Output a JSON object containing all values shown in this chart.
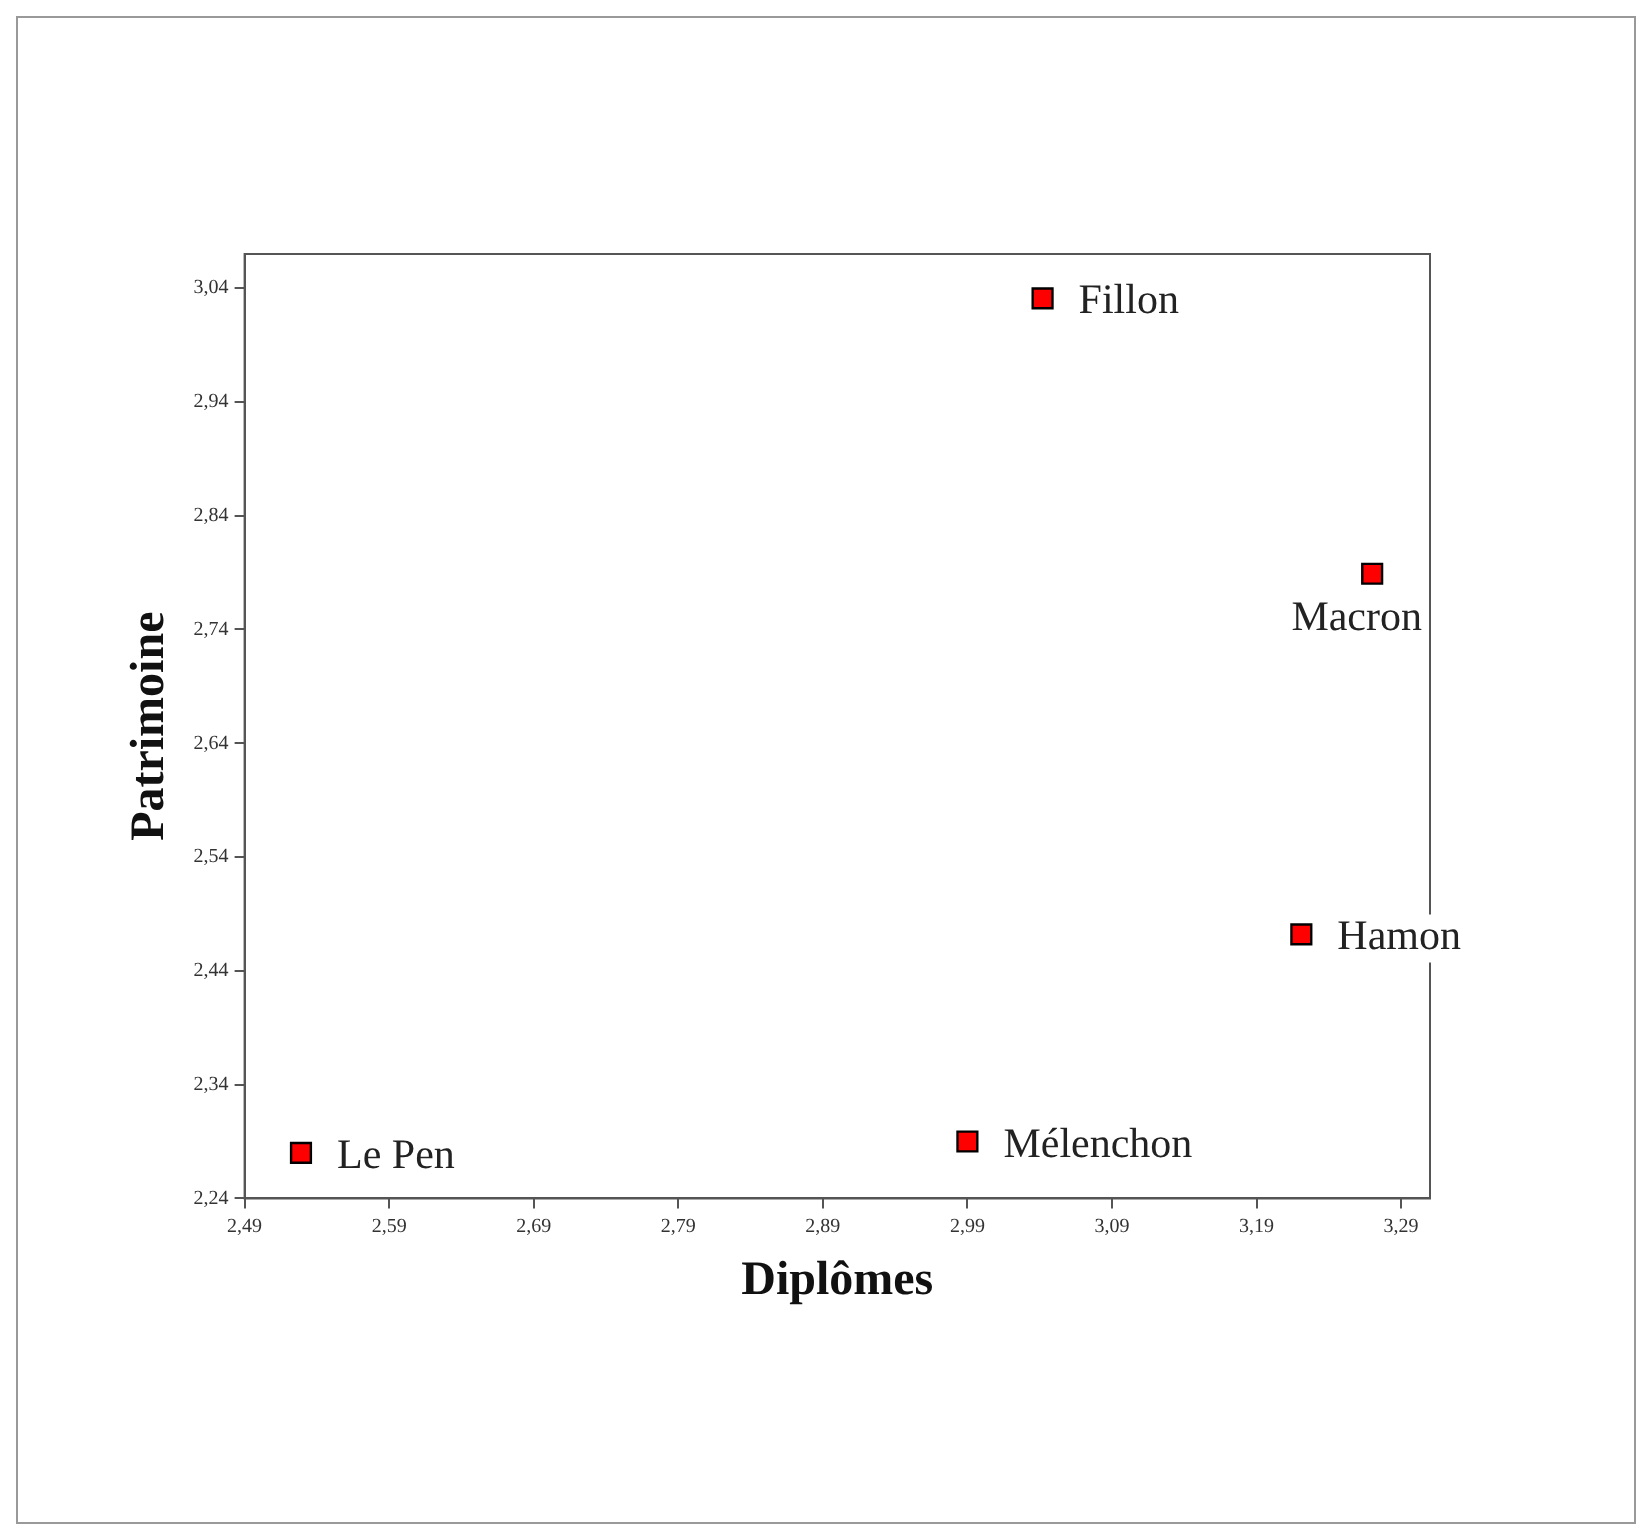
{
  "chart_data": {
    "type": "scatter",
    "xlabel": "Diplômes",
    "ylabel": "Patrimoine",
    "series": [
      {
        "color": "#ff0000",
        "x": [
          2.529,
          2.99,
          3.042,
          3.221,
          3.27
        ],
        "values": [
          2.28,
          2.29,
          3.031,
          2.472,
          2.789
        ]
      }
    ],
    "marker": "square",
    "grid": false,
    "legend": false,
    "xlim": [
      2.49,
      3.31
    ],
    "ylim": [
      2.24,
      3.07
    ],
    "xticks": [
      {
        "value": 2.49,
        "label": "2,49"
      },
      {
        "value": 2.59,
        "label": "2,59"
      },
      {
        "value": 2.69,
        "label": "2,69"
      },
      {
        "value": 2.79,
        "label": "2,79"
      },
      {
        "value": 2.89,
        "label": "2,89"
      },
      {
        "value": 2.99,
        "label": "2,99"
      },
      {
        "value": 3.09,
        "label": "3,09"
      },
      {
        "value": 3.19,
        "label": "3,19"
      },
      {
        "value": 3.29,
        "label": "3,29"
      }
    ],
    "yticks": [
      {
        "value": 2.24,
        "label": "2,24"
      },
      {
        "value": 2.34,
        "label": "2,34"
      },
      {
        "value": 2.44,
        "label": "2,44"
      },
      {
        "value": 2.54,
        "label": "2,54"
      },
      {
        "value": 2.64,
        "label": "2,64"
      },
      {
        "value": 2.74,
        "label": "2,74"
      },
      {
        "value": 2.84,
        "label": "2,84"
      },
      {
        "value": 2.94,
        "label": "2,94"
      },
      {
        "value": 3.04,
        "label": "3,04"
      }
    ],
    "annotations": [
      {
        "text": "Le Pen",
        "x": 2.529,
        "y": 2.28
      },
      {
        "text": "Mélenchon",
        "x": 2.99,
        "y": 2.29
      },
      {
        "text": "Fillon",
        "x": 3.042,
        "y": 3.031
      },
      {
        "text": "Hamon",
        "x": 3.221,
        "y": 2.472
      },
      {
        "text": "Macron",
        "x": 3.27,
        "y": 2.789
      }
    ]
  }
}
